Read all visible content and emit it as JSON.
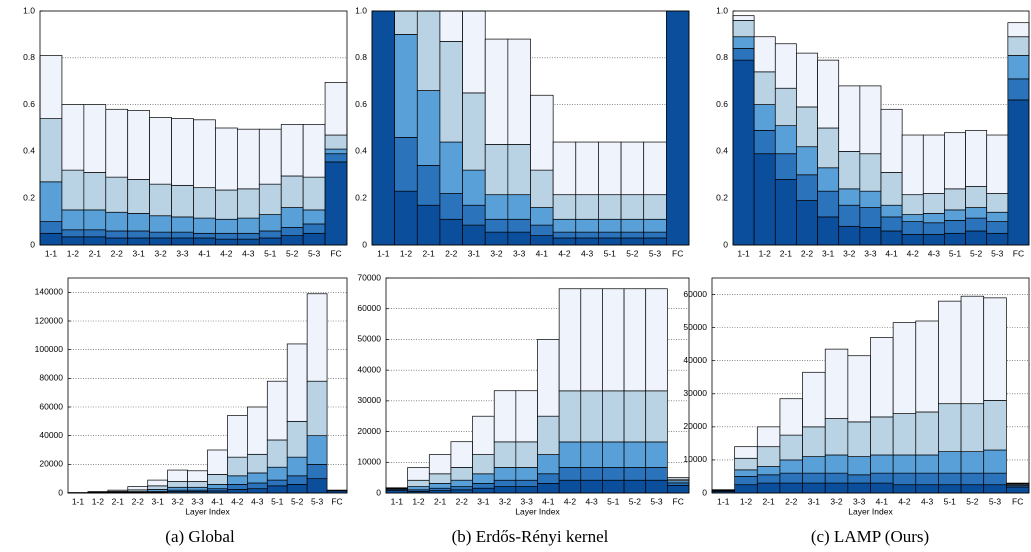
{
  "captions": [
    "(a) Global",
    "(b) Erdős-Rényi kernel",
    "(c) LAMP (Ours)"
  ],
  "chart_data": [
    {
      "type": "bar",
      "stacked": true,
      "grid": true,
      "categories": [
        "1-1",
        "1-2",
        "2-1",
        "2-2",
        "3-1",
        "3-2",
        "3-3",
        "4-1",
        "4-2",
        "4-3",
        "5-1",
        "5-2",
        "5-3",
        "FC"
      ],
      "ylim": [
        0,
        1
      ],
      "yticks": [
        0,
        0.2,
        0.4,
        0.6,
        0.8,
        {
          "value": 1,
          "label": "1.0"
        }
      ],
      "series": [
        {
          "color": "#0b4f9c",
          "values": [
            0.05,
            0.035,
            0.035,
            0.03,
            0.03,
            0.03,
            0.03,
            0.03,
            0.025,
            0.025,
            0.03,
            0.04,
            0.05,
            0.355
          ]
        },
        {
          "color": "#2b73bb",
          "values": [
            0.05,
            0.03,
            0.03,
            0.03,
            0.03,
            0.025,
            0.025,
            0.02,
            0.025,
            0.025,
            0.03,
            0.035,
            0.04,
            0.035
          ]
        },
        {
          "color": "#5aa0d8",
          "values": [
            0.17,
            0.085,
            0.085,
            0.08,
            0.075,
            0.07,
            0.065,
            0.065,
            0.06,
            0.065,
            0.07,
            0.085,
            0.06,
            0.02
          ]
        },
        {
          "color": "#b9d3e5",
          "values": [
            0.27,
            0.17,
            0.16,
            0.15,
            0.145,
            0.135,
            0.135,
            0.13,
            0.125,
            0.125,
            0.13,
            0.135,
            0.14,
            0.06
          ]
        },
        {
          "color": "#eef3fc",
          "values": [
            0.27,
            0.28,
            0.29,
            0.29,
            0.295,
            0.285,
            0.285,
            0.29,
            0.265,
            0.255,
            0.235,
            0.22,
            0.225,
            0.225
          ]
        }
      ]
    },
    {
      "type": "bar",
      "stacked": true,
      "grid": true,
      "categories": [
        "1-1",
        "1-2",
        "2-1",
        "2-2",
        "3-1",
        "3-2",
        "3-3",
        "4-1",
        "4-2",
        "4-3",
        "5-1",
        "5-2",
        "5-3",
        "FC"
      ],
      "ylim": [
        0,
        1
      ],
      "yticks": [
        0,
        0.2,
        0.4,
        0.6,
        0.8,
        {
          "value": 1,
          "label": "1.0"
        }
      ],
      "series": [
        {
          "color": "#0b4f9c",
          "values": [
            1,
            0.23,
            0.17,
            0.11,
            0.085,
            0.055,
            0.055,
            0.04,
            0.03,
            0.03,
            0.03,
            0.03,
            0.03,
            1
          ]
        },
        {
          "color": "#2b73bb",
          "values": [
            0,
            0.23,
            0.17,
            0.11,
            0.085,
            0.055,
            0.055,
            0.045,
            0.025,
            0.025,
            0.025,
            0.025,
            0.025,
            0
          ]
        },
        {
          "color": "#5aa0d8",
          "values": [
            0,
            0.44,
            0.32,
            0.22,
            0.15,
            0.105,
            0.105,
            0.075,
            0.055,
            0.055,
            0.055,
            0.055,
            0.055,
            0
          ]
        },
        {
          "color": "#b9d3e5",
          "values": [
            0,
            0.1,
            0.34,
            0.43,
            0.33,
            0.215,
            0.215,
            0.16,
            0.105,
            0.105,
            0.105,
            0.105,
            0.105,
            0
          ]
        },
        {
          "color": "#eef3fc",
          "values": [
            0,
            0,
            0,
            0.13,
            0.35,
            0.45,
            0.45,
            0.32,
            0.225,
            0.225,
            0.225,
            0.225,
            0.225,
            0
          ]
        }
      ]
    },
    {
      "type": "bar",
      "stacked": true,
      "grid": true,
      "categories": [
        "1-1",
        "1-2",
        "2-1",
        "2-2",
        "3-1",
        "3-2",
        "3-3",
        "4-1",
        "4-2",
        "4-3",
        "5-1",
        "5-2",
        "5-3",
        "FC"
      ],
      "ylim": [
        0,
        1
      ],
      "yticks": [
        0,
        0.2,
        0.4,
        0.6,
        0.8,
        {
          "value": 1,
          "label": "1.0"
        }
      ],
      "series": [
        {
          "color": "#0b4f9c",
          "values": [
            0.79,
            0.39,
            0.28,
            0.19,
            0.12,
            0.08,
            0.075,
            0.06,
            0.045,
            0.045,
            0.05,
            0.06,
            0.05,
            0.62
          ]
        },
        {
          "color": "#2b73bb",
          "values": [
            0.05,
            0.1,
            0.11,
            0.11,
            0.11,
            0.09,
            0.085,
            0.06,
            0.055,
            0.05,
            0.055,
            0.055,
            0.05,
            0.09
          ]
        },
        {
          "color": "#5aa0d8",
          "values": [
            0.05,
            0.11,
            0.12,
            0.12,
            0.1,
            0.07,
            0.07,
            0.05,
            0.03,
            0.04,
            0.045,
            0.045,
            0.04,
            0.1
          ]
        },
        {
          "color": "#b9d3e5",
          "values": [
            0.07,
            0.14,
            0.16,
            0.17,
            0.17,
            0.16,
            0.16,
            0.14,
            0.085,
            0.085,
            0.09,
            0.09,
            0.08,
            0.08
          ]
        },
        {
          "color": "#eef3fc",
          "values": [
            0.02,
            0.15,
            0.19,
            0.23,
            0.29,
            0.28,
            0.29,
            0.27,
            0.255,
            0.25,
            0.24,
            0.24,
            0.25,
            0.06
          ]
        }
      ]
    },
    {
      "type": "bar",
      "stacked": true,
      "grid": true,
      "xlabel": "Layer Index",
      "categories": [
        "1-1",
        "1-2",
        "2-1",
        "2-2",
        "3-1",
        "3-2",
        "3-3",
        "4-1",
        "4-2",
        "4-3",
        "5-1",
        "5-2",
        "5-3",
        "FC"
      ],
      "ylim": [
        0,
        150000
      ],
      "yticks": [
        0,
        20000,
        40000,
        60000,
        80000,
        100000,
        120000,
        140000
      ],
      "series": [
        {
          "color": "#0b4f9c",
          "values": [
            20,
            50,
            100,
            250,
            500,
            1000,
            1000,
            1500,
            2500,
            3000,
            5000,
            6000,
            10000,
            1500
          ]
        },
        {
          "color": "#2b73bb",
          "values": [
            30,
            50,
            200,
            250,
            500,
            1000,
            1000,
            1500,
            3500,
            4000,
            4000,
            6000,
            10000,
            200
          ]
        },
        {
          "color": "#5aa0d8",
          "values": [
            50,
            150,
            300,
            500,
            1500,
            2000,
            2000,
            3000,
            6000,
            7000,
            9000,
            13000,
            20000,
            100
          ]
        },
        {
          "color": "#b9d3e5",
          "values": [
            100,
            250,
            600,
            1200,
            2500,
            4000,
            4000,
            7000,
            13000,
            13000,
            19000,
            25000,
            38000,
            100
          ]
        },
        {
          "color": "#eef3fc",
          "values": [
            100,
            500,
            800,
            2300,
            4000,
            8000,
            7500,
            17000,
            29000,
            33000,
            41000,
            54000,
            61000,
            100
          ]
        }
      ]
    },
    {
      "type": "bar",
      "stacked": true,
      "grid": true,
      "xlabel": "Layer Index",
      "categories": [
        "1-1",
        "1-2",
        "2-1",
        "2-2",
        "3-1",
        "3-2",
        "3-3",
        "4-1",
        "4-2",
        "4-3",
        "5-1",
        "5-2",
        "5-3",
        "FC"
      ],
      "ylim": [
        0,
        70000
      ],
      "yticks": [
        0,
        10000,
        20000,
        30000,
        40000,
        50000,
        60000,
        70000
      ],
      "series": [
        {
          "color": "#0b4f9c",
          "values": [
            800,
            520,
            780,
            1040,
            1560,
            2080,
            2080,
            3130,
            4160,
            4160,
            4160,
            4160,
            4160,
            2500
          ]
        },
        {
          "color": "#2b73bb",
          "values": [
            300,
            520,
            780,
            1040,
            1560,
            2080,
            2080,
            3130,
            4160,
            4160,
            4160,
            4160,
            4160,
            800
          ]
        },
        {
          "color": "#5aa0d8",
          "values": [
            300,
            1040,
            1560,
            2090,
            3130,
            4160,
            4160,
            6250,
            8310,
            8310,
            8310,
            8310,
            8310,
            700
          ]
        },
        {
          "color": "#b9d3e5",
          "values": [
            200,
            2070,
            3130,
            4180,
            6250,
            8330,
            8330,
            12500,
            16630,
            16630,
            16630,
            16630,
            16630,
            500
          ]
        },
        {
          "color": "#eef3fc",
          "values": [
            100,
            4150,
            6250,
            8350,
            12500,
            16650,
            16650,
            25000,
            33240,
            33240,
            33240,
            33240,
            33240,
            500
          ]
        }
      ]
    },
    {
      "type": "bar",
      "stacked": true,
      "grid": true,
      "xlabel": "Layer Index",
      "categories": [
        "1-1",
        "1-2",
        "2-1",
        "2-2",
        "3-1",
        "3-2",
        "3-3",
        "4-1",
        "4-2",
        "4-3",
        "5-1",
        "5-2",
        "5-3",
        "FC"
      ],
      "ylim": [
        0,
        65000
      ],
      "yticks": [
        0,
        10000,
        20000,
        30000,
        40000,
        50000,
        60000
      ],
      "series": [
        {
          "color": "#0b4f9c",
          "values": [
            500,
            2500,
            3000,
            3000,
            3000,
            3000,
            3000,
            3000,
            2500,
            2500,
            2500,
            2500,
            2500,
            1800
          ]
        },
        {
          "color": "#2b73bb",
          "values": [
            100,
            2500,
            2500,
            3000,
            3000,
            3000,
            2500,
            3000,
            3500,
            3500,
            3500,
            3500,
            3500,
            400
          ]
        },
        {
          "color": "#5aa0d8",
          "values": [
            100,
            2000,
            2500,
            4000,
            5000,
            5500,
            5500,
            5500,
            5500,
            5500,
            6500,
            6500,
            7000,
            300
          ]
        },
        {
          "color": "#b9d3e5",
          "values": [
            200,
            3500,
            6000,
            7500,
            9000,
            11000,
            10500,
            11500,
            12500,
            13000,
            14500,
            14500,
            15000,
            300
          ]
        },
        {
          "color": "#eef3fc",
          "values": [
            100,
            3500,
            6000,
            11000,
            16500,
            21000,
            20000,
            24000,
            27500,
            27500,
            31000,
            32500,
            31000,
            200
          ]
        }
      ]
    }
  ]
}
